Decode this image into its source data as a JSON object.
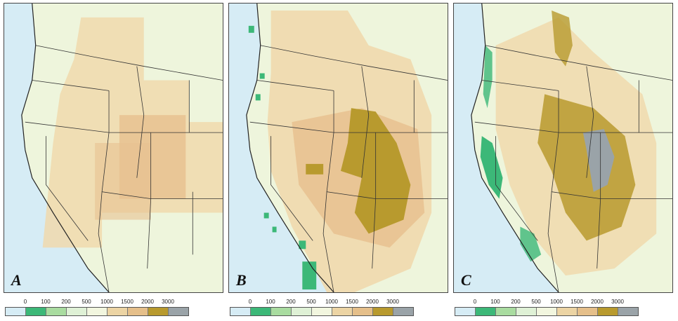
{
  "panels": [
    {
      "label": "A",
      "style": "coarse"
    },
    {
      "label": "B",
      "style": "medium"
    },
    {
      "label": "C",
      "style": "fine"
    }
  ],
  "legend": {
    "ticks": [
      "0",
      "100",
      "200",
      "500",
      "1000",
      "1500",
      "2000",
      "3000"
    ],
    "colors": [
      "#d6ecf5",
      "#3cb878",
      "#a9dca0",
      "#dff1d6",
      "#f2f6df",
      "#ecd4a4",
      "#e5bf8a",
      "#b89a2e",
      "#9aa3a8"
    ]
  },
  "colors": {
    "ocean": "#d6ecf5",
    "lowland": "#eef5dc",
    "foothill": "#f0d9ad",
    "upland": "#e8c291",
    "highland": "#b89a2e",
    "peak": "#9aa3a8",
    "coastgreen": "#3cb878",
    "borders": "#333333"
  }
}
